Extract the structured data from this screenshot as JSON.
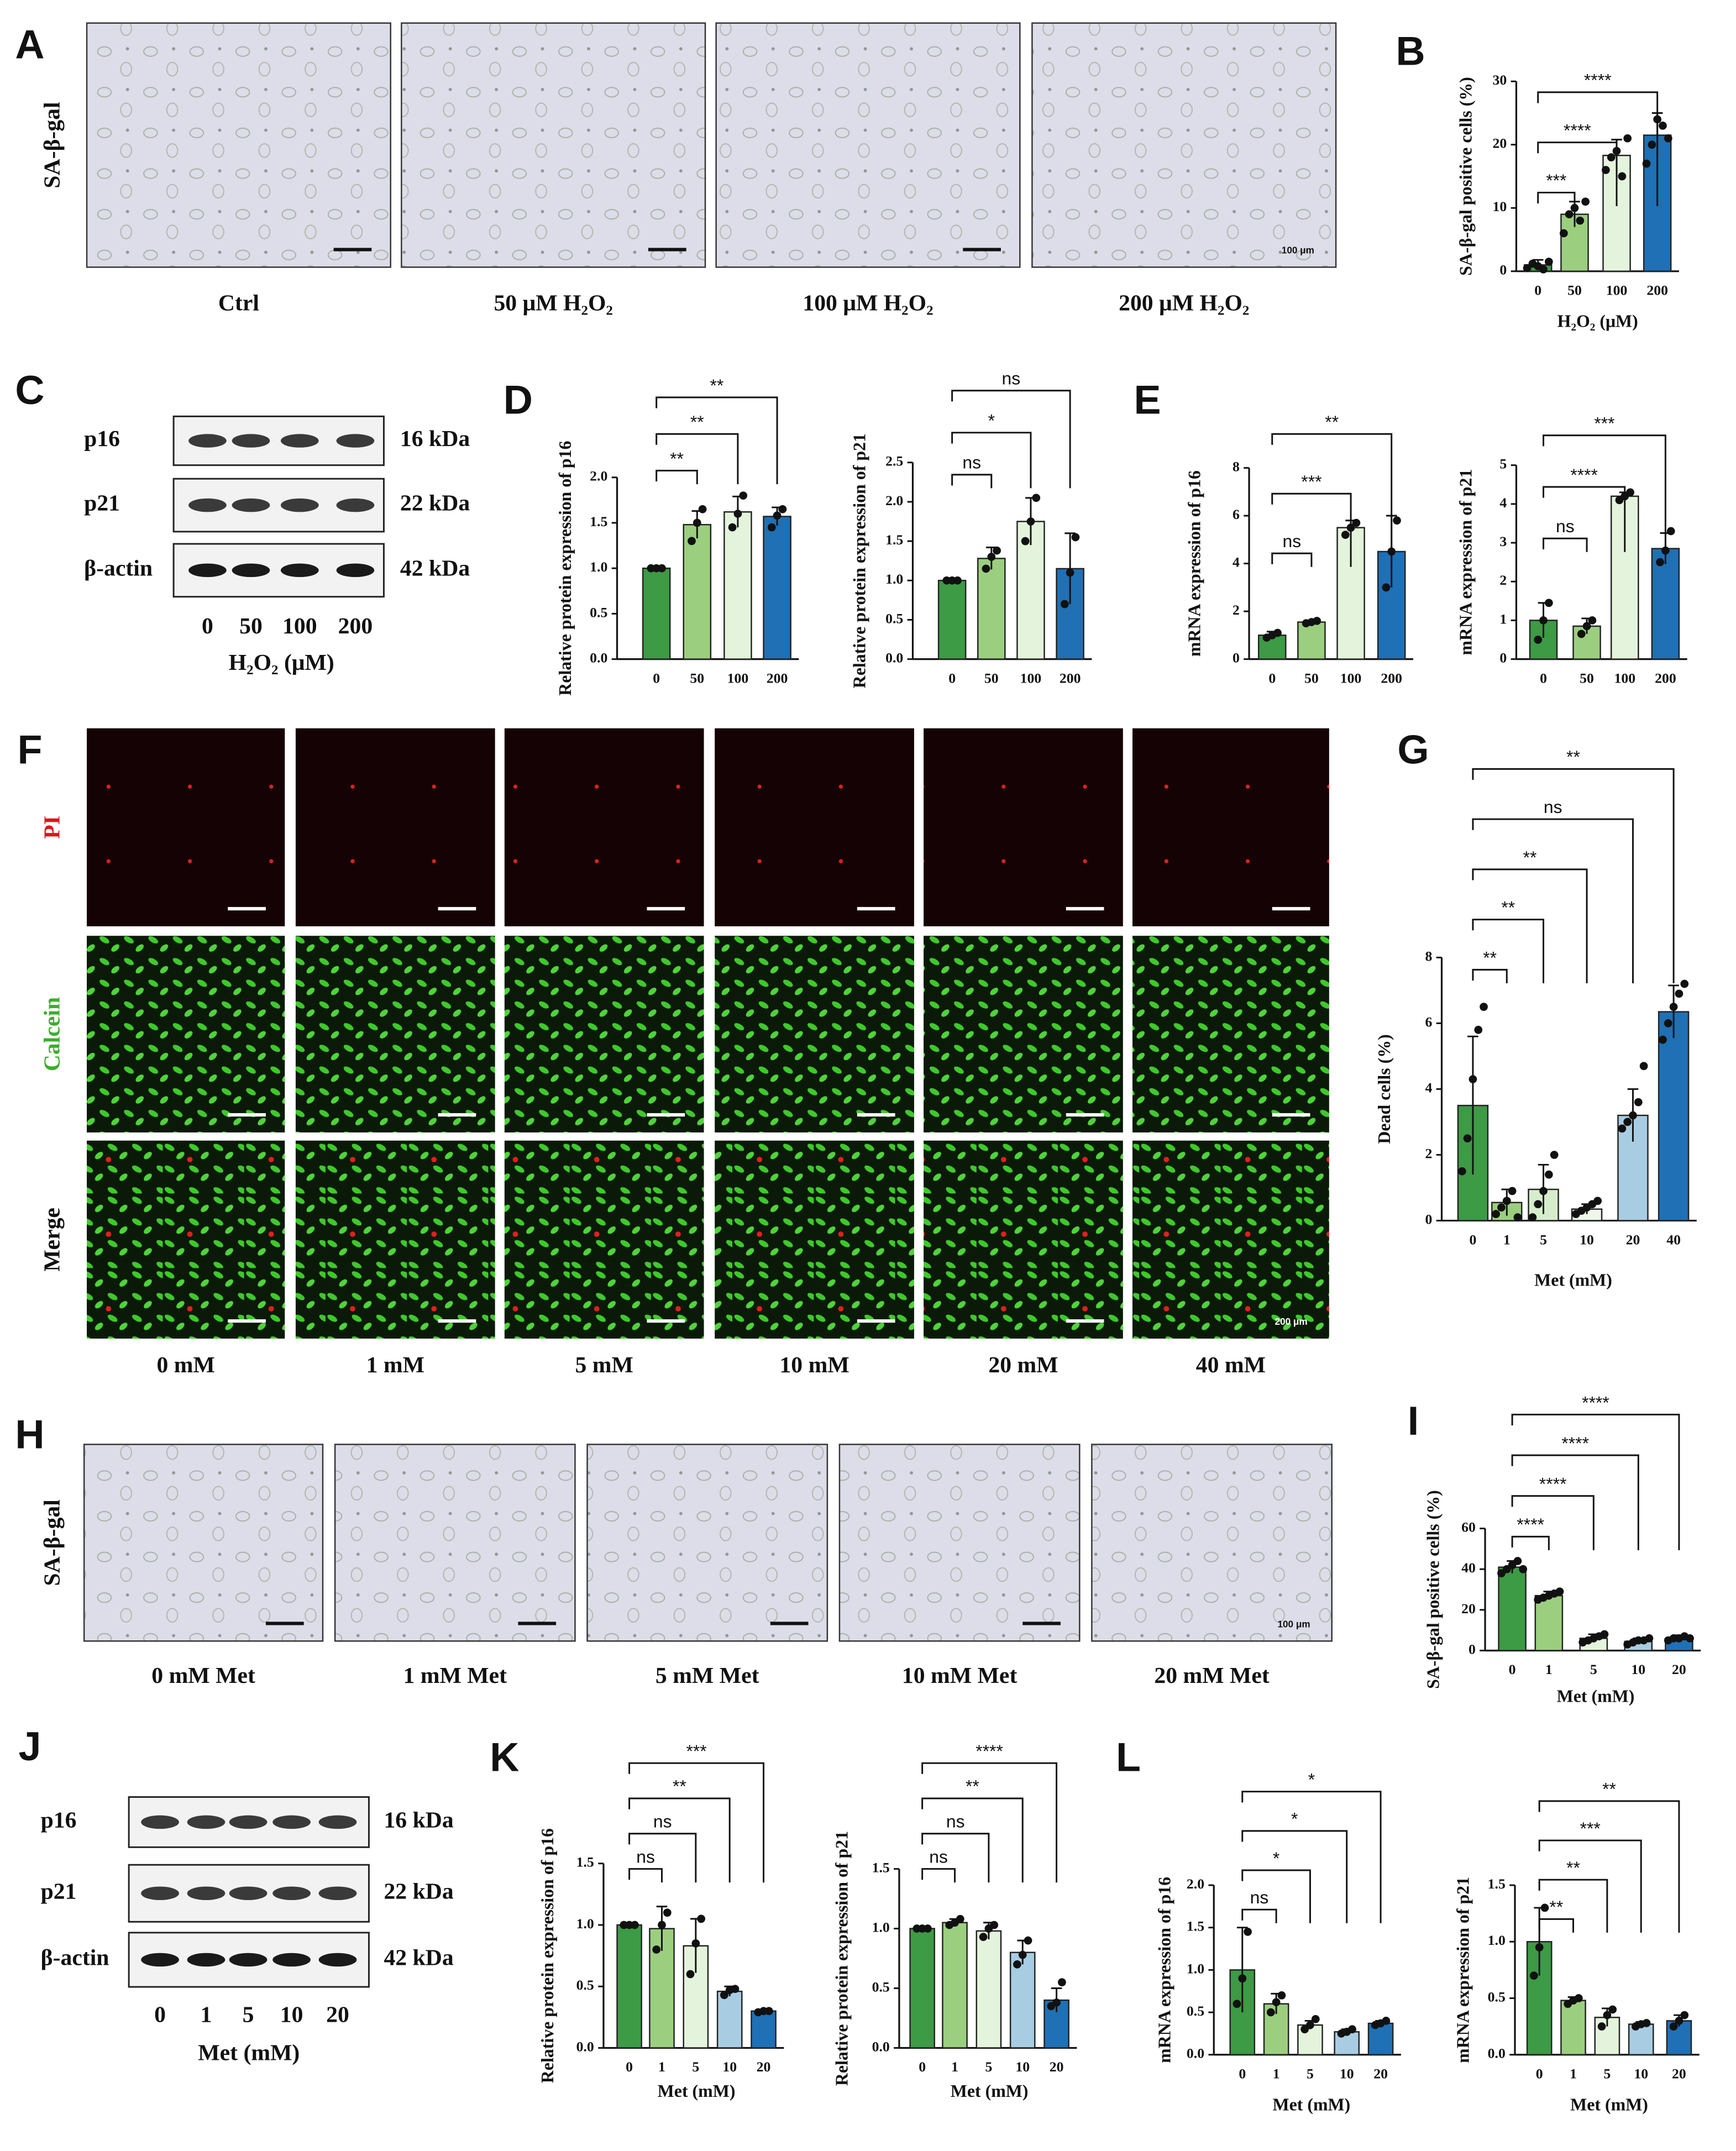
{
  "images": [
    {
      "letter": "A",
      "row_labels": [
        "SA-β-gal"
      ],
      "columns": [
        "Ctrl",
        "50 μM H₂O₂",
        "100 μM H₂O₂",
        "200 μM H₂O₂"
      ],
      "scale_label": "100 μm"
    },
    {
      "letter": "F",
      "row_labels": [
        "PI",
        "Calcein",
        "Merge"
      ],
      "columns": [
        "0 mM",
        "1 mM",
        "5 mM",
        "10 mM",
        "20 mM",
        "40 mM"
      ],
      "scale_label": "200 μm"
    },
    {
      "letter": "H",
      "row_labels": [
        "SA-β-gal"
      ],
      "columns": [
        "0 mM  Met",
        "1 mM Met",
        "5 mM  Met",
        "10 mM Met",
        "20 mM Met"
      ],
      "scale_label": "100 μm"
    }
  ],
  "blots": [
    {
      "letter": "C",
      "rows": [
        {
          "name": "p16",
          "size": "16 kDa"
        },
        {
          "name": "p21",
          "size": "22 kDa"
        },
        {
          "name": "β-actin",
          "size": "42 kDa"
        }
      ],
      "lanes": [
        "0",
        "50",
        "100",
        "200"
      ],
      "axis_label": "H₂O₂ (μM)"
    },
    {
      "letter": "J",
      "rows": [
        {
          "name": "p16",
          "size": "16 kDa"
        },
        {
          "name": "p21",
          "size": "22 kDa"
        },
        {
          "name": "β-actin",
          "size": "42 kDa"
        }
      ],
      "lanes": [
        "0",
        "1",
        "5",
        "10",
        "20"
      ],
      "axis_label": "Met (mM)"
    }
  ],
  "chart_data": [
    {
      "type": "bar",
      "letter": "B",
      "ylabel": "SA-β-gal positive cells (%)",
      "xlabel": "H₂O₂ (μM)",
      "categories": [
        "0",
        "50",
        "100",
        "200"
      ],
      "values": [
        1,
        9,
        18.3,
        21.5
      ],
      "errors": [
        0.8,
        2,
        2.5,
        3.5
      ],
      "points": [
        [
          0.5,
          1.2,
          0.8,
          0.3,
          1.5
        ],
        [
          6,
          9,
          10,
          8,
          11
        ],
        [
          16,
          18,
          19,
          15,
          21
        ],
        [
          17,
          20,
          24,
          23,
          21
        ]
      ],
      "colors": [
        "#3d9a45",
        "#9bcf7f",
        "#e4f4dc",
        "#1f70b5"
      ],
      "ylim": [
        0,
        30
      ],
      "yticks": [
        0,
        10,
        20,
        30
      ],
      "significance": [
        null,
        "***",
        "****",
        "****"
      ]
    },
    {
      "type": "bar",
      "letter": "D",
      "ylabel": "Relative protein expression of p16",
      "categories": [
        "0",
        "50",
        "100",
        "200"
      ],
      "values": [
        1.0,
        1.48,
        1.62,
        1.57
      ],
      "errors": [
        0.01,
        0.15,
        0.17,
        0.1
      ],
      "points": [
        [
          1,
          1,
          1
        ],
        [
          1.3,
          1.5,
          1.65
        ],
        [
          1.45,
          1.6,
          1.8
        ],
        [
          1.45,
          1.58,
          1.65
        ]
      ],
      "colors": [
        "#3d9a45",
        "#9bcf7f",
        "#e4f4dc",
        "#1f70b5"
      ],
      "ylim": [
        0,
        2
      ],
      "yticks": [
        {
          "value": 0,
          "label": "0.0"
        },
        0.5,
        {
          "value": 1,
          "label": "1.0"
        },
        1.5,
        {
          "value": 2,
          "label": "2.0"
        }
      ],
      "significance": [
        null,
        "**",
        "**",
        "**"
      ]
    },
    {
      "type": "bar",
      "ylabel": "Relative protein expression of p21",
      "categories": [
        "0",
        "50",
        "100",
        "200"
      ],
      "values": [
        1.0,
        1.28,
        1.75,
        1.15
      ],
      "errors": [
        0.01,
        0.14,
        0.3,
        0.45
      ],
      "points": [
        [
          1,
          1,
          1
        ],
        [
          1.15,
          1.3,
          1.38
        ],
        [
          1.5,
          1.75,
          2.05
        ],
        [
          0.7,
          1.1,
          1.55
        ]
      ],
      "colors": [
        "#3d9a45",
        "#9bcf7f",
        "#e4f4dc",
        "#1f70b5"
      ],
      "ylim": [
        0,
        2.5
      ],
      "yticks": [
        {
          "value": 0,
          "label": "0.0"
        },
        0.5,
        {
          "value": 1,
          "label": "1.0"
        },
        1.5,
        {
          "value": 2,
          "label": "2.0"
        },
        2.5
      ],
      "significance": [
        null,
        "ns",
        "*",
        "ns"
      ]
    },
    {
      "type": "bar",
      "letter": "E",
      "ylabel": "mRNA expression of p16",
      "categories": [
        "0",
        "50",
        "100",
        "200"
      ],
      "values": [
        1.0,
        1.55,
        5.5,
        4.5
      ],
      "errors": [
        0.15,
        0.05,
        0.3,
        1.5
      ],
      "points": [
        [
          0.9,
          1.0,
          1.1
        ],
        [
          1.5,
          1.55,
          1.6
        ],
        [
          5.2,
          5.5,
          5.7
        ],
        [
          3,
          4.5,
          5.8
        ]
      ],
      "colors": [
        "#3d9a45",
        "#9bcf7f",
        "#e4f4dc",
        "#1f70b5"
      ],
      "ylim": [
        0,
        8
      ],
      "yticks": [
        0,
        2,
        4,
        6,
        8
      ],
      "significance": [
        null,
        "ns",
        "***",
        "**"
      ]
    },
    {
      "type": "bar",
      "ylabel": "mRNA expression of p21",
      "categories": [
        "0",
        "50",
        "100",
        "200"
      ],
      "values": [
        1.0,
        0.85,
        4.2,
        2.85
      ],
      "errors": [
        0.45,
        0.2,
        0.1,
        0.4
      ],
      "points": [
        [
          0.5,
          1.0,
          1.45
        ],
        [
          0.65,
          0.85,
          1.0
        ],
        [
          4.1,
          4.2,
          4.3
        ],
        [
          2.5,
          2.8,
          3.3
        ]
      ],
      "colors": [
        "#3d9a45",
        "#9bcf7f",
        "#e4f4dc",
        "#1f70b5"
      ],
      "ylim": [
        0,
        5
      ],
      "yticks": [
        0,
        1,
        2,
        3,
        4,
        5
      ],
      "significance": [
        null,
        "ns",
        "****",
        "***"
      ]
    },
    {
      "type": "bar",
      "letter": "G",
      "ylabel": "Dead cells (%)",
      "xlabel": "Met (mM)",
      "categories": [
        "0",
        "1",
        "5",
        "10",
        "20",
        "40"
      ],
      "values": [
        3.5,
        0.55,
        0.95,
        0.35,
        3.2,
        6.35
      ],
      "errors": [
        2.1,
        0.4,
        0.75,
        0.15,
        0.8,
        0.8
      ],
      "points": [
        [
          1.5,
          2.5,
          4.3,
          5.8,
          6.5
        ],
        [
          0.2,
          0.4,
          0.6,
          0.9,
          0.1
        ],
        [
          0.1,
          0.5,
          0.9,
          1.4,
          2.0
        ],
        [
          0.2,
          0.3,
          0.4,
          0.5,
          0.6
        ],
        [
          2.8,
          3.0,
          3.2,
          3.6,
          4.7
        ],
        [
          5.5,
          6.0,
          6.5,
          6.9,
          7.2
        ]
      ],
      "colors": [
        "#3d9a45",
        "#9bcf7f",
        "#d6edcc",
        "#eef7ea",
        "#a8cde3",
        "#1f70b5"
      ],
      "ylim": [
        0,
        8
      ],
      "yticks": [
        0,
        2,
        4,
        6,
        8
      ],
      "significance": [
        null,
        "**",
        "**",
        "**",
        "ns",
        "**"
      ]
    },
    {
      "type": "bar",
      "letter": "I",
      "ylabel": "SA-β-gal positive cells (%)",
      "xlabel": "Met (mM)",
      "categories": [
        "0",
        "1",
        "5",
        "10",
        "20"
      ],
      "values": [
        41,
        27,
        6,
        4.5,
        6
      ],
      "errors": [
        3,
        2,
        2,
        1.5,
        1.5
      ],
      "points": [
        [
          38,
          40,
          42,
          44,
          40
        ],
        [
          25,
          26,
          27,
          28,
          29
        ],
        [
          4,
          5,
          6,
          7,
          8
        ],
        [
          3,
          4,
          5,
          5,
          6
        ],
        [
          5,
          6,
          6,
          7,
          6
        ]
      ],
      "colors": [
        "#3d9a45",
        "#9bcf7f",
        "#e4f4dc",
        "#a8cde3",
        "#1f70b5"
      ],
      "ylim": [
        0,
        60
      ],
      "yticks": [
        0,
        20,
        40,
        60
      ],
      "significance": [
        null,
        "****",
        "****",
        "****",
        "****"
      ]
    },
    {
      "type": "bar",
      "letter": "K",
      "ylabel": "Relative protein expression of p16",
      "xlabel": "Met (mM)",
      "categories": [
        "0",
        "1",
        "5",
        "10",
        "20"
      ],
      "values": [
        1.0,
        0.97,
        0.83,
        0.46,
        0.3
      ],
      "errors": [
        0.01,
        0.18,
        0.22,
        0.04,
        0.01
      ],
      "points": [
        [
          1,
          1,
          1
        ],
        [
          0.8,
          1.0,
          1.1
        ],
        [
          0.6,
          0.85,
          1.05
        ],
        [
          0.43,
          0.47,
          0.48
        ],
        [
          0.29,
          0.3,
          0.3
        ]
      ],
      "colors": [
        "#3d9a45",
        "#9bcf7f",
        "#e4f4dc",
        "#a8cde3",
        "#1f70b5"
      ],
      "ylim": [
        0,
        1.5
      ],
      "yticks": [
        {
          "value": 0,
          "label": "0.0"
        },
        0.5,
        {
          "value": 1,
          "label": "1.0"
        },
        1.5
      ],
      "significance": [
        null,
        "ns",
        "ns",
        "**",
        "***"
      ]
    },
    {
      "type": "bar",
      "ylabel": "Relative protein expression of p21",
      "xlabel": "Met (mM)",
      "categories": [
        "0",
        "1",
        "5",
        "10",
        "20"
      ],
      "values": [
        1.0,
        1.05,
        0.98,
        0.8,
        0.4
      ],
      "errors": [
        0.01,
        0.03,
        0.07,
        0.1,
        0.1
      ],
      "points": [
        [
          1,
          1,
          1
        ],
        [
          1.03,
          1.05,
          1.08
        ],
        [
          0.93,
          1.0,
          1.03
        ],
        [
          0.7,
          0.78,
          0.9
        ],
        [
          0.35,
          0.38,
          0.55
        ]
      ],
      "colors": [
        "#3d9a45",
        "#9bcf7f",
        "#e4f4dc",
        "#a8cde3",
        "#1f70b5"
      ],
      "ylim": [
        0,
        1.5
      ],
      "yticks": [
        {
          "value": 0,
          "label": "0.0"
        },
        0.5,
        {
          "value": 1,
          "label": "1.0"
        },
        1.5
      ],
      "significance": [
        null,
        "ns",
        "ns",
        "**",
        "****"
      ]
    },
    {
      "type": "bar",
      "letter": "L",
      "ylabel": "mRNA expression of p16",
      "xlabel": "Met (mM)",
      "categories": [
        "0",
        "1",
        "5",
        "10",
        "20"
      ],
      "values": [
        1.0,
        0.6,
        0.35,
        0.27,
        0.37
      ],
      "errors": [
        0.5,
        0.12,
        0.05,
        0.03,
        0.03
      ],
      "points": [
        [
          0.6,
          0.9,
          1.45
        ],
        [
          0.5,
          0.62,
          0.7
        ],
        [
          0.3,
          0.35,
          0.42
        ],
        [
          0.25,
          0.27,
          0.3
        ],
        [
          0.35,
          0.37,
          0.4
        ]
      ],
      "colors": [
        "#3d9a45",
        "#9bcf7f",
        "#e4f4dc",
        "#a8cde3",
        "#1f70b5"
      ],
      "ylim": [
        0,
        2
      ],
      "yticks": [
        {
          "value": 0,
          "label": "0.0"
        },
        0.5,
        {
          "value": 1,
          "label": "1.0"
        },
        1.5,
        {
          "value": 2,
          "label": "2.0"
        }
      ],
      "significance": [
        null,
        "ns",
        "*",
        "*",
        "*"
      ]
    },
    {
      "type": "bar",
      "ylabel": "mRNA expression of p21",
      "xlabel": "Met (mM)",
      "categories": [
        "0",
        "1",
        "5",
        "10",
        "20"
      ],
      "values": [
        1.0,
        0.48,
        0.33,
        0.27,
        0.3
      ],
      "errors": [
        0.3,
        0.03,
        0.08,
        0.02,
        0.05
      ],
      "points": [
        [
          0.7,
          0.95,
          1.3
        ],
        [
          0.45,
          0.48,
          0.5
        ],
        [
          0.25,
          0.35,
          0.4
        ],
        [
          0.25,
          0.27,
          0.28
        ],
        [
          0.25,
          0.3,
          0.35
        ]
      ],
      "colors": [
        "#3d9a45",
        "#9bcf7f",
        "#e4f4dc",
        "#a8cde3",
        "#1f70b5"
      ],
      "ylim": [
        0,
        1.5
      ],
      "yticks": [
        {
          "value": 0,
          "label": "0.0"
        },
        0.5,
        {
          "value": 1,
          "label": "1.0"
        },
        1.5
      ],
      "significance": [
        null,
        "**",
        "**",
        "***",
        "**"
      ]
    }
  ]
}
